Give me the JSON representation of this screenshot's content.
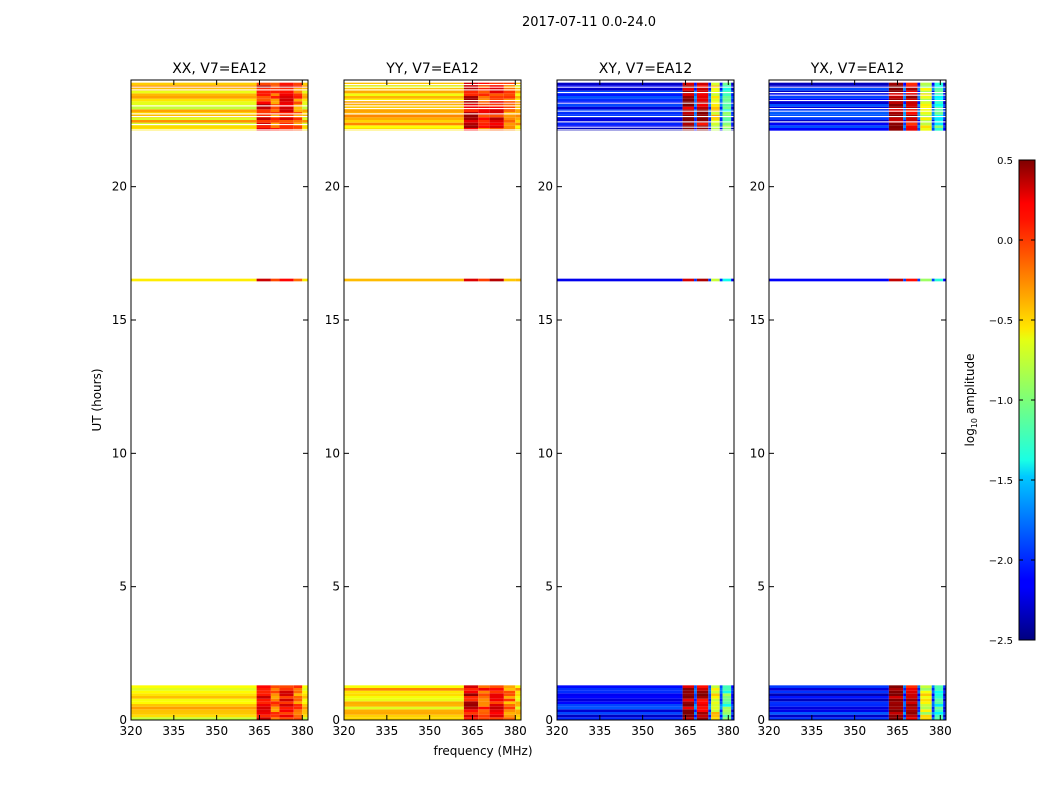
{
  "figure": {
    "suptitle": "2017-07-11 0.0-24.0",
    "xlabel": "frequency (MHz)",
    "ylabel": "UT (hours)",
    "colorbar_label": "log",
    "colorbar_label_sub": "10",
    "colorbar_label_suffix": " amplitude",
    "colormap": "jet"
  },
  "chart_data": {
    "type": "heatmap",
    "xlim": [
      320,
      382
    ],
    "ylim": [
      0,
      24
    ],
    "x_ticks": [
      320,
      335,
      350,
      365,
      380
    ],
    "y_ticks": [
      0,
      5,
      10,
      15,
      20
    ],
    "colorbar": {
      "vmin": -2.5,
      "vmax": 0.5,
      "ticks": [
        "0.5",
        "0.0",
        "−0.5",
        "−1.0",
        "−1.5",
        "−2.0",
        "−2.5"
      ],
      "tick_values": [
        0.5,
        0.0,
        -0.5,
        -1.0,
        -1.5,
        -2.0,
        -2.5
      ]
    },
    "time_ranges_hours": [
      [
        0.0,
        1.3
      ],
      [
        16.45,
        16.55
      ],
      [
        22.1,
        23.9
      ]
    ],
    "panels": [
      {
        "title": "XX, V7=EA12",
        "background_level": -0.55,
        "bands": [
          {
            "freq": [
              364,
              369
            ],
            "level": 0.1
          },
          {
            "freq": [
              369,
              372
            ],
            "level": -0.15
          },
          {
            "freq": [
              372,
              377
            ],
            "level": 0.05
          },
          {
            "freq": [
              377,
              380
            ],
            "level": -0.2
          }
        ]
      },
      {
        "title": "YY, V7=EA12",
        "background_level": -0.5,
        "bands": [
          {
            "freq": [
              362,
              367
            ],
            "level": 0.2
          },
          {
            "freq": [
              367,
              371
            ],
            "level": -0.05
          },
          {
            "freq": [
              371,
              376
            ],
            "level": 0.1
          },
          {
            "freq": [
              376,
              380
            ],
            "level": -0.25
          }
        ]
      },
      {
        "title": "XY, V7=EA12",
        "background_level": -2.1,
        "bands": [
          {
            "freq": [
              364,
              368
            ],
            "level": 0.4
          },
          {
            "freq": [
              369,
              373
            ],
            "level": 0.3
          },
          {
            "freq": [
              374,
              377
            ],
            "level": -0.6
          },
          {
            "freq": [
              378,
              381
            ],
            "level": -1.1
          }
        ]
      },
      {
        "title": "YX, V7=EA12",
        "background_level": -2.1,
        "bands": [
          {
            "freq": [
              362,
              367
            ],
            "level": 0.4
          },
          {
            "freq": [
              368,
              372
            ],
            "level": 0.2
          },
          {
            "freq": [
              373,
              377
            ],
            "level": -0.7
          },
          {
            "freq": [
              378,
              381
            ],
            "level": -1.2
          }
        ]
      }
    ]
  }
}
